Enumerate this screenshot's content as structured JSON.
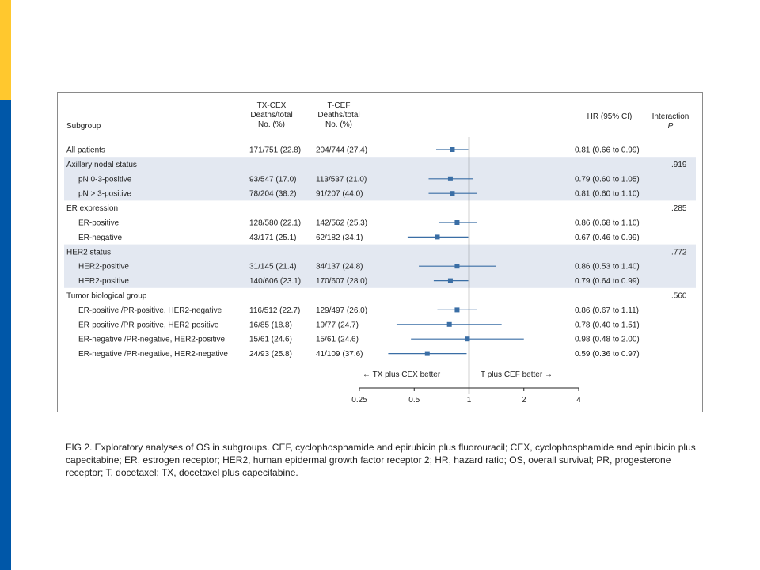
{
  "colors": {
    "accent_yellow": "#FFC82E",
    "accent_blue": "#0057A8",
    "band": "#E3E8F1",
    "marker": "#3A6EA5"
  },
  "headers": {
    "subgroup": "Subgroup",
    "txcex": [
      "TX-CEX",
      "Deaths/total",
      "No. (%)"
    ],
    "tcef": [
      "T-CEF",
      "Deaths/total",
      "No. (%)"
    ],
    "hr": "HR (95% CI)",
    "interaction": [
      "Interaction",
      "P"
    ]
  },
  "chart_data": {
    "type": "forest",
    "xscale": "log",
    "xlim": [
      0.25,
      4
    ],
    "xticks": [
      "0.25",
      "0.5",
      "1",
      "2",
      "4"
    ],
    "xtick_values": [
      0.25,
      0.5,
      1,
      2,
      4
    ],
    "reference_line": 1,
    "left_label": "← TX plus CEX better",
    "right_label": "T plus CEF better →",
    "rows": [
      {
        "label": "All patients",
        "indent": false,
        "header": false,
        "txcex": "171/751 (22.8)",
        "tcef": "204/744 (27.4)",
        "hr": 0.81,
        "lo": 0.66,
        "hi": 0.99,
        "hr_text": "0.81 (0.66 to 0.99)",
        "p": "",
        "band": false
      },
      {
        "label": "Axillary nodal status",
        "indent": false,
        "header": true,
        "txcex": "",
        "tcef": "",
        "hr_text": "",
        "p": ".919",
        "band": true
      },
      {
        "label": "pN 0-3-positive",
        "indent": true,
        "header": false,
        "txcex": "93/547 (17.0)",
        "tcef": "113/537 (21.0)",
        "hr": 0.79,
        "lo": 0.6,
        "hi": 1.05,
        "hr_text": "0.79 (0.60 to 1.05)",
        "p": "",
        "band": true
      },
      {
        "label": "pN > 3-positive",
        "indent": true,
        "header": false,
        "txcex": "78/204 (38.2)",
        "tcef": "91/207 (44.0)",
        "hr": 0.81,
        "lo": 0.6,
        "hi": 1.1,
        "hr_text": "0.81 (0.60 to 1.10)",
        "p": "",
        "band": true
      },
      {
        "label": "ER expression",
        "indent": false,
        "header": true,
        "txcex": "",
        "tcef": "",
        "hr_text": "",
        "p": ".285",
        "band": false
      },
      {
        "label": "ER-positive",
        "indent": true,
        "header": false,
        "txcex": "128/580 (22.1)",
        "tcef": "142/562 (25.3)",
        "hr": 0.86,
        "lo": 0.68,
        "hi": 1.1,
        "hr_text": "0.86 (0.68 to 1.10)",
        "p": "",
        "band": false
      },
      {
        "label": "ER-negative",
        "indent": true,
        "header": false,
        "txcex": "43/171 (25.1)",
        "tcef": "62/182 (34.1)",
        "hr": 0.67,
        "lo": 0.46,
        "hi": 0.99,
        "hr_text": "0.67 (0.46 to 0.99)",
        "p": "",
        "band": false
      },
      {
        "label": "HER2 status",
        "indent": false,
        "header": true,
        "txcex": "",
        "tcef": "",
        "hr_text": "",
        "p": ".772",
        "band": true
      },
      {
        "label": "HER2-positive",
        "indent": true,
        "header": false,
        "txcex": "31/145 (21.4)",
        "tcef": "34/137 (24.8)",
        "hr": 0.86,
        "lo": 0.53,
        "hi": 1.4,
        "hr_text": "0.86 (0.53 to 1.40)",
        "p": "",
        "band": true
      },
      {
        "label": "HER2-positive",
        "indent": true,
        "header": false,
        "txcex": "140/606 (23.1)",
        "tcef": "170/607 (28.0)",
        "hr": 0.79,
        "lo": 0.64,
        "hi": 0.99,
        "hr_text": "0.79 (0.64 to 0.99)",
        "p": "",
        "band": true
      },
      {
        "label": "Tumor biological group",
        "indent": false,
        "header": true,
        "txcex": "",
        "tcef": "",
        "hr_text": "",
        "p": ".560",
        "band": false
      },
      {
        "label": "ER-positive /PR-positive, HER2-negative",
        "indent": true,
        "header": false,
        "txcex": "116/512 (22.7)",
        "tcef": "129/497 (26.0)",
        "hr": 0.86,
        "lo": 0.67,
        "hi": 1.11,
        "hr_text": "0.86 (0.67 to 1.11)",
        "p": "",
        "band": false
      },
      {
        "label": "ER-positive /PR-positive, HER2-positive",
        "indent": true,
        "header": false,
        "txcex": "16/85 (18.8)",
        "tcef": "19/77 (24.7)",
        "hr": 0.78,
        "lo": 0.4,
        "hi": 1.51,
        "hr_text": "0.78 (0.40 to 1.51)",
        "p": "",
        "band": false
      },
      {
        "label": "ER-negative /PR-negative, HER2-positive",
        "indent": true,
        "header": false,
        "txcex": "15/61 (24.6)",
        "tcef": "15/61 (24.6)",
        "hr": 0.98,
        "lo": 0.48,
        "hi": 2.0,
        "hr_text": "0.98 (0.48 to 2.00)",
        "p": "",
        "band": false
      },
      {
        "label": "ER-negative /PR-negative, HER2-negative",
        "indent": true,
        "header": false,
        "txcex": "24/93 (25.8)",
        "tcef": "41/109 (37.6)",
        "hr": 0.59,
        "lo": 0.36,
        "hi": 0.97,
        "hr_text": "0.59 (0.36 to 0.97)",
        "p": "",
        "band": false
      }
    ]
  },
  "caption": "FIG 2. Exploratory analyses of OS in subgroups. CEF, cyclophosphamide and epirubicin plus fluorouracil; CEX, cyclophosphamide and epirubicin plus capecitabine; ER, estrogen receptor; HER2, human epidermal growth factor receptor 2; HR, hazard ratio; OS, overall survival; PR, progesterone receptor; T, docetaxel; TX, docetaxel plus capecitabine."
}
